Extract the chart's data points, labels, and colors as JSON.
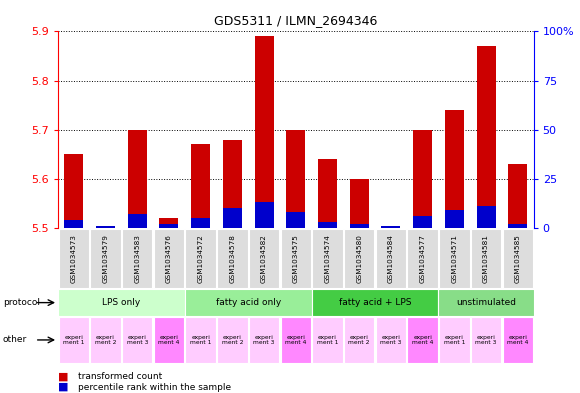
{
  "title": "GDS5311 / ILMN_2694346",
  "samples": [
    "GSM1034573",
    "GSM1034579",
    "GSM1034583",
    "GSM1034576",
    "GSM1034572",
    "GSM1034578",
    "GSM1034582",
    "GSM1034575",
    "GSM1034574",
    "GSM1034580",
    "GSM1034584",
    "GSM1034577",
    "GSM1034571",
    "GSM1034581",
    "GSM1034585"
  ],
  "transformed_count": [
    5.65,
    5.5,
    5.7,
    5.52,
    5.67,
    5.68,
    5.89,
    5.7,
    5.64,
    5.6,
    5.5,
    5.7,
    5.74,
    5.87,
    5.63
  ],
  "percentile_rank": [
    4,
    1,
    7,
    2,
    5,
    10,
    13,
    8,
    3,
    2,
    1,
    6,
    9,
    11,
    2
  ],
  "ylim_left": [
    5.5,
    5.9
  ],
  "ylim_right": [
    0,
    100
  ],
  "yticks_left": [
    5.5,
    5.6,
    5.7,
    5.8,
    5.9
  ],
  "yticks_right": [
    0,
    25,
    50,
    75,
    100
  ],
  "ytick_labels_right": [
    "0",
    "25",
    "50",
    "75",
    "100%"
  ],
  "protocols": [
    {
      "label": "LPS only",
      "start": 0,
      "end": 4,
      "color": "#ccffcc"
    },
    {
      "label": "fatty acid only",
      "start": 4,
      "end": 8,
      "color": "#99ee99"
    },
    {
      "label": "fatty acid + LPS",
      "start": 8,
      "end": 12,
      "color": "#44cc44"
    },
    {
      "label": "unstimulated",
      "start": 12,
      "end": 15,
      "color": "#88dd88"
    }
  ],
  "other_labels": [
    "experi\nment 1",
    "experi\nment 2",
    "experi\nment 3",
    "experi\nment 4",
    "experi\nment 1",
    "experi\nment 2",
    "experi\nment 3",
    "experi\nment 4",
    "experi\nment 1",
    "experi\nment 2",
    "experi\nment 3",
    "experi\nment 4",
    "experi\nment 1",
    "experi\nment 3",
    "experi\nment 4"
  ],
  "other_colors": [
    "#ffccff",
    "#ffccff",
    "#ffccff",
    "#ff88ff",
    "#ffccff",
    "#ffccff",
    "#ffccff",
    "#ff88ff",
    "#ffccff",
    "#ffccff",
    "#ffccff",
    "#ff88ff",
    "#ffccff",
    "#ffccff",
    "#ff88ff"
  ],
  "bar_color_red": "#cc0000",
  "bar_color_blue": "#0000cc",
  "bar_width": 0.6,
  "background_color": "#ffffff",
  "xticklabel_bgcolor": "#dddddd",
  "grid_color": "#000000"
}
